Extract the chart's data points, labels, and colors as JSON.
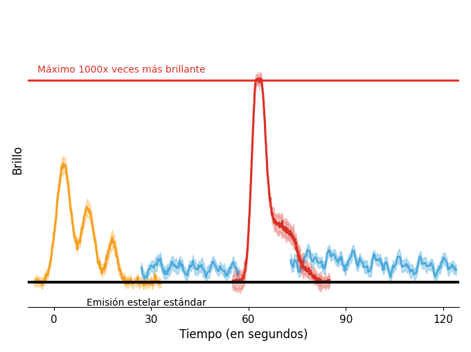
{
  "xlabel": "Tiempo (en segundos)",
  "ylabel": "Brillo",
  "xlim": [
    -8,
    125
  ],
  "ylim": [
    -0.1,
    1.1
  ],
  "baseline_y": 0.0,
  "max_line_y": 0.82,
  "max_line_color": "#E8352A",
  "max_line_label": "Máximo 1000x veces más brillante",
  "baseline_color": "#000000",
  "baseline_label": "Emisión estelar estándar",
  "orange_color": "#F5A020",
  "red_color": "#D93025",
  "blue_color": "#4DAADC",
  "background_color": "#FFFFFF",
  "font_size_label": 12,
  "font_size_annotation": 10
}
